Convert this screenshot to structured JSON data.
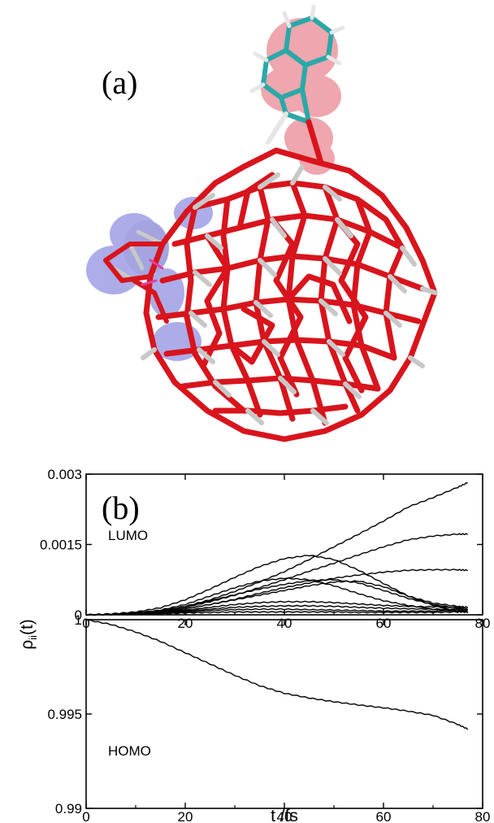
{
  "panel_a": {
    "label": "(a)",
    "colors": {
      "oxygen": "#d8141c",
      "metal": "#c8c8c8",
      "surface_red": "#e05060",
      "surface_blue": "#6a6ad8",
      "carbon": "#2aa8a8",
      "hydrogen": "#e6e6e6"
    }
  },
  "chart_data": [
    {
      "type": "line",
      "label": "(b)",
      "inner_label": "LUMO",
      "xlim": [
        0,
        80
      ],
      "ylim": [
        0,
        0.003
      ],
      "x_ticks": [
        "0",
        "20",
        "40",
        "60",
        "80"
      ],
      "y_ticks": [
        "0",
        "0.0015",
        "0.003"
      ],
      "x": [
        0,
        5,
        10,
        15,
        20,
        25,
        30,
        35,
        40,
        45,
        50,
        55,
        60,
        65,
        70,
        75,
        77
      ],
      "series": [
        {
          "values": [
            0,
            1e-05,
            3e-05,
            8e-05,
            0.00018,
            0.00032,
            0.0005,
            0.0007,
            0.00092,
            0.00118,
            0.00145,
            0.00172,
            0.002,
            0.0023,
            0.0025,
            0.00272,
            0.00282
          ]
        },
        {
          "values": [
            0,
            1e-05,
            3e-05,
            8e-05,
            0.00016,
            0.00028,
            0.00042,
            0.00058,
            0.00075,
            0.00093,
            0.0011,
            0.00128,
            0.00145,
            0.0016,
            0.00168,
            0.00172,
            0.00172
          ]
        },
        {
          "values": [
            0,
            1e-05,
            3e-05,
            6e-05,
            0.00013,
            0.00022,
            0.00033,
            0.00046,
            0.00058,
            0.00068,
            0.00078,
            0.00085,
            0.00091,
            0.00095,
            0.00096,
            0.00096,
            0.00095
          ]
        },
        {
          "values": [
            0,
            2e-05,
            6e-05,
            0.00015,
            0.00032,
            0.00055,
            0.0008,
            0.00103,
            0.0012,
            0.00127,
            0.00118,
            0.00095,
            0.00067,
            0.0004,
            0.0002,
            8e-05,
            5e-05
          ]
        },
        {
          "values": [
            0,
            1e-05,
            4e-05,
            0.0001,
            0.00022,
            0.0004,
            0.00058,
            0.00072,
            0.00078,
            0.00075,
            0.00062,
            0.00045,
            0.0003,
            0.0002,
            0.00012,
            8e-05,
            6e-05
          ]
        },
        {
          "values": [
            0,
            1e-05,
            3e-05,
            8e-05,
            0.00018,
            0.0003,
            0.00043,
            0.00055,
            0.00065,
            0.00073,
            0.00075,
            0.00068,
            0.00052,
            0.00035,
            0.00022,
            0.00014,
            0.00012
          ]
        },
        {
          "values": [
            0,
            1e-05,
            2e-05,
            6e-05,
            0.00013,
            0.00022,
            0.00032,
            0.00042,
            0.00052,
            0.00062,
            0.0007,
            0.00072,
            0.0006,
            0.0004,
            0.00025,
            0.00018,
            0.00016
          ]
        },
        {
          "values": [
            0,
            1e-05,
            2e-05,
            5e-05,
            0.0001,
            0.00016,
            0.00022,
            0.00026,
            0.00028,
            0.00028,
            0.00026,
            0.00023,
            0.0002,
            0.00018,
            0.00017,
            0.00016,
            0.00016
          ]
        },
        {
          "values": [
            0,
            1e-05,
            2e-05,
            4e-05,
            8e-05,
            0.00012,
            0.00016,
            0.00018,
            0.00019,
            0.00019,
            0.00018,
            0.00016,
            0.00014,
            0.00013,
            0.00012,
            0.00012,
            0.00012
          ]
        },
        {
          "values": [
            0,
            1e-05,
            2e-05,
            3e-05,
            6e-05,
            9e-05,
            0.00011,
            0.00012,
            0.00012,
            0.00011,
            0.0001,
            9e-05,
            8e-05,
            8e-05,
            8e-05,
            9e-05,
            9e-05
          ]
        },
        {
          "values": [
            0,
            1e-05,
            1e-05,
            2e-05,
            4e-05,
            5e-05,
            6e-05,
            6e-05,
            6e-05,
            6e-05,
            6e-05,
            5e-05,
            5e-05,
            5e-05,
            5e-05,
            6e-05,
            6e-05
          ]
        }
      ]
    },
    {
      "type": "line",
      "inner_label": "HOMO",
      "ylabel": "ρ_ii(t)",
      "xlabel": "t /fs",
      "xlim": [
        0,
        80
      ],
      "ylim": [
        0.99,
        1.0
      ],
      "x_ticks": [
        "0",
        "20",
        "40",
        "60",
        "80"
      ],
      "y_ticks": [
        "0.99",
        "0.995",
        "1"
      ],
      "x": [
        0,
        5,
        10,
        15,
        20,
        25,
        30,
        35,
        40,
        45,
        50,
        55,
        60,
        65,
        70,
        75,
        77
      ],
      "series": [
        {
          "values": [
            1.0,
            0.99975,
            0.99935,
            0.99885,
            0.99825,
            0.99765,
            0.99705,
            0.9965,
            0.9961,
            0.99585,
            0.99565,
            0.99548,
            0.99533,
            0.99515,
            0.99493,
            0.99445,
            0.9942
          ]
        }
      ]
    }
  ]
}
